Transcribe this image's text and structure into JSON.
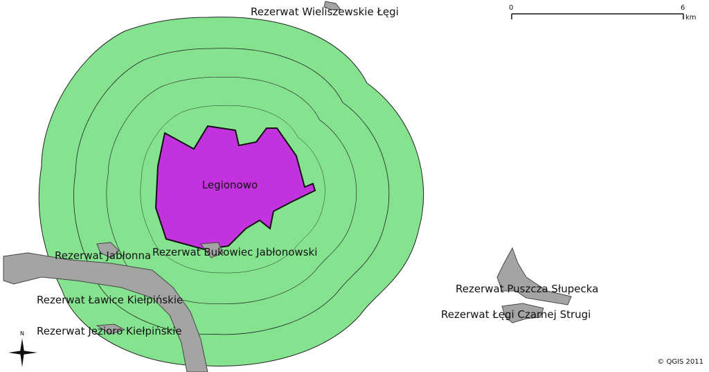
{
  "map": {
    "labels": {
      "legionowo": "Legionowo",
      "wieliszewskie": "Rezerwat Wieliszewskie Łęgi",
      "jablonna": "Rezerwat Jabłonna",
      "bukowiec": "Rezerwat Bukowiec Jabłonowski",
      "lawice": "Rezerwat Ławice Kiełpińskie",
      "jezioro": "Rezerwat Jezioro Kiełpińskie",
      "puszcza": "Rezerwat Puszcza Słupecka",
      "legi_czarnej": "Rezerwat Łęgi Czarnej Strugi"
    },
    "scale_bar": {
      "start": "0",
      "end": "6",
      "unit": "km"
    },
    "north_arrow": "N",
    "copyright": "© QGIS 2011"
  }
}
